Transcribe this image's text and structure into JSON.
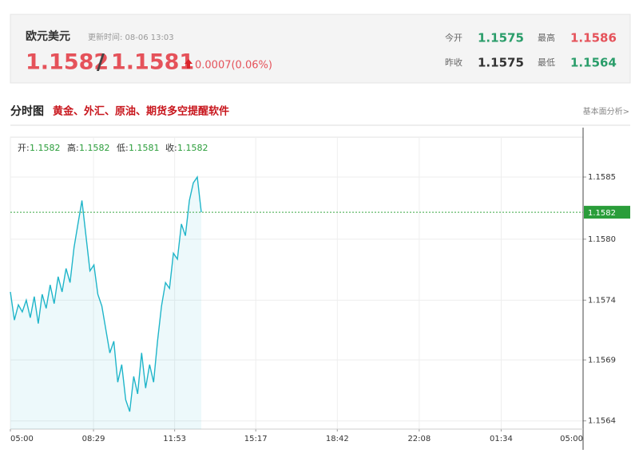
{
  "header": {
    "name": "欧元美元",
    "updated": "更新时间: 08-06 13:03",
    "bid": "1.1582",
    "separator": "/",
    "ask": "1.1581",
    "change": "0.0007(0.06%)",
    "stats": [
      {
        "label": "今开",
        "value": "1.1575"
      },
      {
        "label": "最高",
        "value": "1.1586"
      },
      {
        "label": "昨收",
        "value": "1.1575"
      },
      {
        "label": "最低",
        "value": "1.1564"
      }
    ]
  },
  "section": {
    "title": "分时图",
    "ad": "黄金、外汇、原油、期货多空提醒软件",
    "link": "基本面分析>"
  },
  "chart_data": {
    "type": "line",
    "info": [
      {
        "label": "开:",
        "value": "1.1582"
      },
      {
        "label": "高:",
        "value": "1.1582"
      },
      {
        "label": "低:",
        "value": "1.1581"
      },
      {
        "label": "收:",
        "value": "1.1582"
      }
    ],
    "x": [
      0,
      10,
      20,
      30,
      40,
      50,
      60,
      70,
      80,
      90,
      100,
      110,
      120,
      130,
      140,
      150,
      160,
      170,
      180,
      190,
      200,
      210,
      220,
      230,
      240,
      250,
      260,
      270,
      280,
      290,
      300,
      310,
      320,
      330,
      340,
      350,
      360,
      370,
      380,
      390,
      400,
      410,
      420,
      430,
      440,
      450,
      460,
      470,
      480
    ],
    "series": [
      {
        "color": "#1fb5c9",
        "values": [
          1.15752,
          1.15728,
          1.15741,
          1.15735,
          1.15745,
          1.1573,
          1.15748,
          1.15725,
          1.1575,
          1.15738,
          1.15758,
          1.15742,
          1.15765,
          1.15752,
          1.15772,
          1.1576,
          1.1579,
          1.1581,
          1.1583,
          1.158,
          1.1577,
          1.15775,
          1.1575,
          1.1574,
          1.1572,
          1.157,
          1.1571,
          1.15675,
          1.1569,
          1.1566,
          1.1565,
          1.1568,
          1.15665,
          1.157,
          1.1567,
          1.1569,
          1.15675,
          1.1571,
          1.1574,
          1.1576,
          1.15755,
          1.15785,
          1.1578,
          1.1581,
          1.158,
          1.1583,
          1.15845,
          1.1585,
          1.1582
        ]
      }
    ],
    "current_price": 1.1582,
    "xlim": [
      0,
      1440
    ],
    "xticks": [
      {
        "value": 0,
        "label": "05:00"
      },
      {
        "value": 209,
        "label": "08:29"
      },
      {
        "value": 413,
        "label": "11:53"
      },
      {
        "value": 617,
        "label": "15:17"
      },
      {
        "value": 822,
        "label": "18:42"
      },
      {
        "value": 1028,
        "label": "22:08"
      },
      {
        "value": 1234,
        "label": "01:34"
      },
      {
        "value": 1440,
        "label": "05:00"
      }
    ],
    "ylim": [
      1.15635,
      1.15884
    ],
    "yticks": [
      {
        "value": 1.15642,
        "label": "1.1564"
      },
      {
        "value": 1.15694,
        "label": "1.1569"
      },
      {
        "value": 1.15745,
        "label": "1.1574"
      },
      {
        "value": 1.15797,
        "label": "1.1580"
      },
      {
        "value": 1.1585,
        "label": "1.1585"
      }
    ],
    "grid": true
  }
}
